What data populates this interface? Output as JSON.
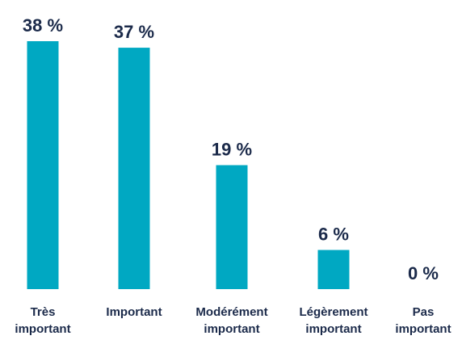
{
  "chart_data": {
    "type": "bar",
    "categories": [
      [
        "Très",
        "important"
      ],
      [
        "Important"
      ],
      [
        "Modérément",
        "important"
      ],
      [
        "Légèrement",
        "important"
      ],
      [
        "Pas",
        "important"
      ]
    ],
    "values": [
      38,
      37,
      19,
      6,
      0
    ],
    "value_labels": [
      "38 %",
      "37 %",
      "19 %",
      "6 %",
      "0 %"
    ],
    "ylim": [
      0,
      38
    ],
    "bar_color": "#00a8c2",
    "text_color": "#1b2a4a",
    "grid": false,
    "legend": "none"
  }
}
